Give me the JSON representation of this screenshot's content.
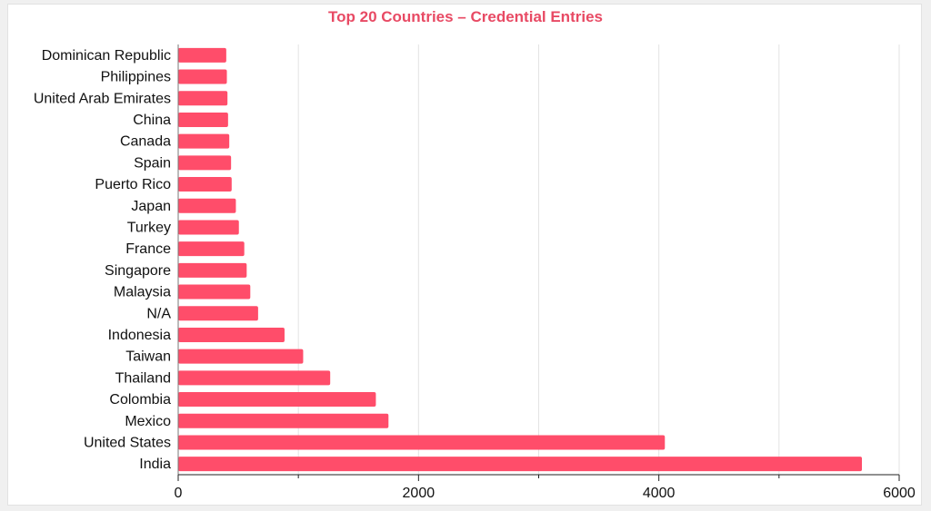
{
  "chart_data": {
    "type": "bar",
    "orientation": "horizontal",
    "title": "Top 20 Countries – Credential Entries",
    "xlabel": "",
    "ylabel": "",
    "categories": [
      "Dominican Republic",
      "Philippines",
      "United Arab Emirates",
      "China",
      "Canada",
      "Spain",
      "Puerto Rico",
      "Japan",
      "Turkey",
      "France",
      "Singapore",
      "Malaysia",
      "N/A",
      "Indonesia",
      "Taiwan",
      "Thailand",
      "Colombia",
      "Mexico",
      "United States",
      "India"
    ],
    "values": [
      400,
      405,
      410,
      415,
      425,
      440,
      445,
      480,
      505,
      550,
      570,
      600,
      665,
      885,
      1040,
      1265,
      1645,
      1750,
      4050,
      5690
    ],
    "xlim": [
      0,
      6000
    ],
    "xticks": [
      0,
      2000,
      4000,
      6000
    ],
    "xtick_labels": [
      "0",
      "2000",
      "4000",
      "6000"
    ],
    "grid": "vertical",
    "bar_color": "#ff4d6a",
    "title_color": "#e84a64"
  }
}
